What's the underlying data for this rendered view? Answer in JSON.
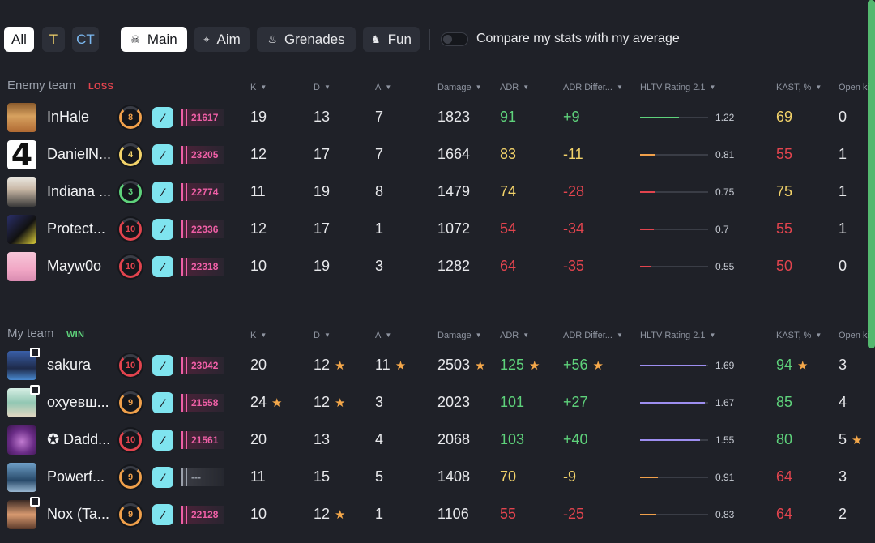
{
  "filters": {
    "side": [
      "All",
      "T",
      "CT"
    ],
    "modes": [
      {
        "label": "Main",
        "icon": "skull-icon",
        "glyph": "☠"
      },
      {
        "label": "Aim",
        "icon": "crosshair-icon",
        "glyph": "⌖"
      },
      {
        "label": "Grenades",
        "icon": "grenade-icon",
        "glyph": "♨"
      },
      {
        "label": "Fun",
        "icon": "chicken-icon",
        "glyph": "♞"
      }
    ],
    "compare_label": "Compare my stats with my average"
  },
  "columns": [
    "K",
    "D",
    "A",
    "Damage",
    "ADR",
    "ADR Differ...",
    "HLTV Rating 2.1",
    "KAST, %",
    "Open ki"
  ],
  "colors": {
    "green": "#5ed27b",
    "yellow": "#f3d36a",
    "red": "#e2444e",
    "orange": "#f0a04b",
    "purple": "#9d8ef0",
    "star": "#f5a84a"
  },
  "teams": [
    {
      "name": "Enemy team",
      "result": "LOSS",
      "players": [
        {
          "name": "InHale",
          "level": "8",
          "premier": "21617",
          "k": "19",
          "d": "13",
          "a": "7",
          "damage": "1823",
          "adr": "91",
          "adr_diff": "+9",
          "hltv": "1.22",
          "hltv_value": 1.22,
          "kast": "69",
          "open": "0"
        },
        {
          "name": "DanielN...",
          "level": "4",
          "premier": "23205",
          "k": "12",
          "d": "17",
          "a": "7",
          "damage": "1664",
          "adr": "83",
          "adr_diff": "-11",
          "hltv": "0.81",
          "hltv_value": 0.81,
          "kast": "55",
          "open": "1"
        },
        {
          "name": "Indiana ...",
          "level": "3",
          "premier": "22774",
          "k": "11",
          "d": "19",
          "a": "8",
          "damage": "1479",
          "adr": "74",
          "adr_diff": "-28",
          "hltv": "0.75",
          "hltv_value": 0.75,
          "kast": "75",
          "open": "1"
        },
        {
          "name": "Protect...",
          "level": "10",
          "premier": "22336",
          "k": "12",
          "d": "17",
          "a": "1",
          "damage": "1072",
          "adr": "54",
          "adr_diff": "-34",
          "hltv": "0.7",
          "hltv_value": 0.7,
          "kast": "55",
          "open": "1"
        },
        {
          "name": "Mayw0o",
          "level": "10",
          "premier": "22318",
          "k": "10",
          "d": "19",
          "a": "3",
          "damage": "1282",
          "adr": "64",
          "adr_diff": "-35",
          "hltv": "0.55",
          "hltv_value": 0.55,
          "kast": "50",
          "open": "0"
        }
      ]
    },
    {
      "name": "My team",
      "result": "WIN",
      "players": [
        {
          "name": "sakura",
          "level": "10",
          "premier": "23042",
          "k": "20",
          "d": "12",
          "a": "11",
          "damage": "2503",
          "adr": "125",
          "adr_diff": "+56",
          "hltv": "1.69",
          "hltv_value": 1.69,
          "kast": "94",
          "open": "3"
        },
        {
          "name": "охуевш...",
          "level": "9",
          "premier": "21558",
          "k": "24",
          "d": "12",
          "a": "3",
          "damage": "2023",
          "adr": "101",
          "adr_diff": "+27",
          "hltv": "1.67",
          "hltv_value": 1.67,
          "kast": "85",
          "open": "4"
        },
        {
          "name": "✪ Dadd...",
          "level": "10",
          "premier": "21561",
          "k": "20",
          "d": "13",
          "a": "4",
          "damage": "2068",
          "adr": "103",
          "adr_diff": "+40",
          "hltv": "1.55",
          "hltv_value": 1.55,
          "kast": "80",
          "open": "5"
        },
        {
          "name": "Powerf...",
          "level": "9",
          "premier": "---",
          "k": "11",
          "d": "15",
          "a": "5",
          "damage": "1408",
          "adr": "70",
          "adr_diff": "-9",
          "hltv": "0.91",
          "hltv_value": 0.91,
          "kast": "64",
          "open": "3"
        },
        {
          "name": "Nox (Ta...",
          "level": "9",
          "premier": "22128",
          "k": "10",
          "d": "12",
          "a": "1",
          "damage": "1106",
          "adr": "55",
          "adr_diff": "-25",
          "hltv": "0.83",
          "hltv_value": 0.83,
          "kast": "64",
          "open": "2"
        }
      ]
    }
  ]
}
